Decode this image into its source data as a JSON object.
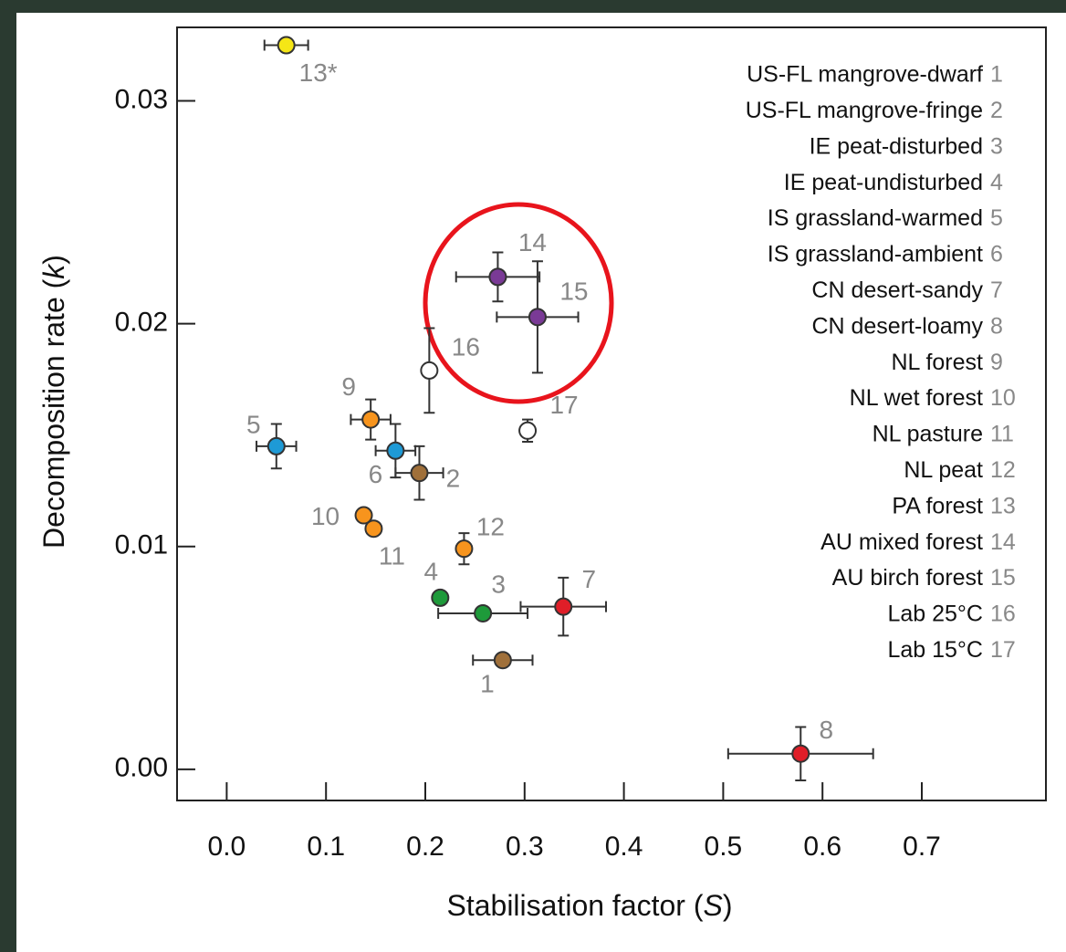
{
  "chart_data": {
    "type": "scatter",
    "xlabel": [
      "Stabilisation factor (",
      "S",
      ")"
    ],
    "ylabel": [
      "Decomposition rate (",
      "k",
      ")"
    ],
    "xlim": [
      -0.05,
      0.825
    ],
    "ylim": [
      -0.0014,
      0.0333
    ],
    "xticks": [
      {
        "value": 0,
        "label": "0.0"
      },
      0.1,
      0.2,
      0.3,
      0.4,
      0.5,
      0.6,
      0.7
    ],
    "yticks": [
      {
        "value": 0,
        "label": "0.00"
      },
      0.01,
      0.02,
      0.03
    ],
    "legend": "upper right",
    "series": [
      {
        "name": "US-FL mangrove-dwarf",
        "id": "1",
        "point_label": "1",
        "color": "#a0703a",
        "x": 0.278,
        "y": 0.0049,
        "xerr": 0.03,
        "yerr": null
      },
      {
        "name": "US-FL mangrove-fringe",
        "id": "2",
        "point_label": "2",
        "color": "#a0703a",
        "x": 0.194,
        "y": 0.0133,
        "xerr": 0.024,
        "yerr": 0.0012
      },
      {
        "name": "IE peat-disturbed",
        "id": "3",
        "point_label": "3",
        "color": "#1e9a3a",
        "x": 0.258,
        "y": 0.007,
        "xerr": 0.045,
        "yerr": null
      },
      {
        "name": "IE peat-undisturbed",
        "id": "4",
        "point_label": "4",
        "color": "#1e9a3a",
        "x": 0.215,
        "y": 0.0077,
        "xerr": null,
        "yerr": null
      },
      {
        "name": "IS grassland-warmed",
        "id": "5",
        "point_label": "5",
        "color": "#1e9ad6",
        "x": 0.05,
        "y": 0.0145,
        "xerr": 0.02,
        "yerr": 0.001
      },
      {
        "name": "IS grassland-ambient",
        "id": "6",
        "point_label": "6",
        "color": "#1e9ad6",
        "x": 0.17,
        "y": 0.0143,
        "xerr": 0.02,
        "yerr": 0.0012
      },
      {
        "name": "CN desert-sandy",
        "id": "7",
        "point_label": "7",
        "color": "#e01e28",
        "x": 0.339,
        "y": 0.0073,
        "xerr": 0.043,
        "yerr": 0.0013
      },
      {
        "name": "CN desert-loamy",
        "id": "8",
        "point_label": "8",
        "color": "#e01e28",
        "x": 0.578,
        "y": 0.0007,
        "xerr": 0.073,
        "yerr": 0.0012
      },
      {
        "name": "NL forest",
        "id": "9",
        "point_label": "9",
        "color": "#f7941d",
        "x": 0.145,
        "y": 0.0157,
        "xerr": 0.02,
        "yerr": 0.0009
      },
      {
        "name": "NL wet forest",
        "id": "10",
        "point_label": "10",
        "color": "#f7941d",
        "x": 0.138,
        "y": 0.0114,
        "xerr": null,
        "yerr": null
      },
      {
        "name": "NL pasture",
        "id": "11",
        "point_label": "11",
        "color": "#f7941d",
        "x": 0.148,
        "y": 0.0108,
        "xerr": null,
        "yerr": null
      },
      {
        "name": "NL peat",
        "id": "12",
        "point_label": "12",
        "color": "#f7941d",
        "x": 0.239,
        "y": 0.0099,
        "xerr": null,
        "yerr": 0.0007
      },
      {
        "name": "PA forest",
        "id": "13",
        "point_label": "13*",
        "color": "#f5e616",
        "x": 0.06,
        "y": 0.0325,
        "xerr": 0.022,
        "yerr": null
      },
      {
        "name": "AU mixed forest",
        "id": "14",
        "point_label": "14",
        "color": "#7a3a96",
        "x": 0.273,
        "y": 0.0221,
        "xerr": 0.042,
        "yerr": 0.0011
      },
      {
        "name": "AU birch forest",
        "id": "15",
        "point_label": "15",
        "color": "#7a3a96",
        "x": 0.313,
        "y": 0.0203,
        "xerr": 0.041,
        "yerr": 0.0025
      },
      {
        "name": "Lab 25°C",
        "id": "16",
        "point_label": "16",
        "color": "#ffffff",
        "x": 0.204,
        "y": 0.0179,
        "xerr": null,
        "yerr": 0.0019
      },
      {
        "name": "Lab 15°C",
        "id": "17",
        "point_label": "17",
        "color": "#ffffff",
        "x": 0.303,
        "y": 0.0152,
        "xerr": null,
        "yerr": 0.0005
      }
    ]
  }
}
